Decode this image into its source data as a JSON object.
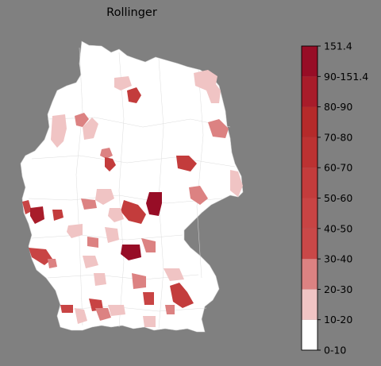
{
  "title": "Rollinger",
  "legend": {
    "min_label": "0-10",
    "max_label": "151.4",
    "bins": [
      {
        "label": "10-20",
        "color": "#ffffff"
      },
      {
        "label": "20-30",
        "color": "#f0c4c4"
      },
      {
        "label": "30-40",
        "color": "#dc8282"
      },
      {
        "label": "40-50",
        "color": "#c94848"
      },
      {
        "label": "50-60",
        "color": "#c84444"
      },
      {
        "label": "60-70",
        "color": "#c33c3c"
      },
      {
        "label": "70-80",
        "color": "#bc3232"
      },
      {
        "label": "80-90",
        "color": "#b52a2a"
      },
      {
        "label": "90-151.4",
        "color": "#a81c2a"
      },
      {
        "label": "151.4",
        "color": "#970d26"
      }
    ]
  },
  "colors": {
    "background": "#808080",
    "land": "#ffffff",
    "border": "#d8d8d8"
  }
}
